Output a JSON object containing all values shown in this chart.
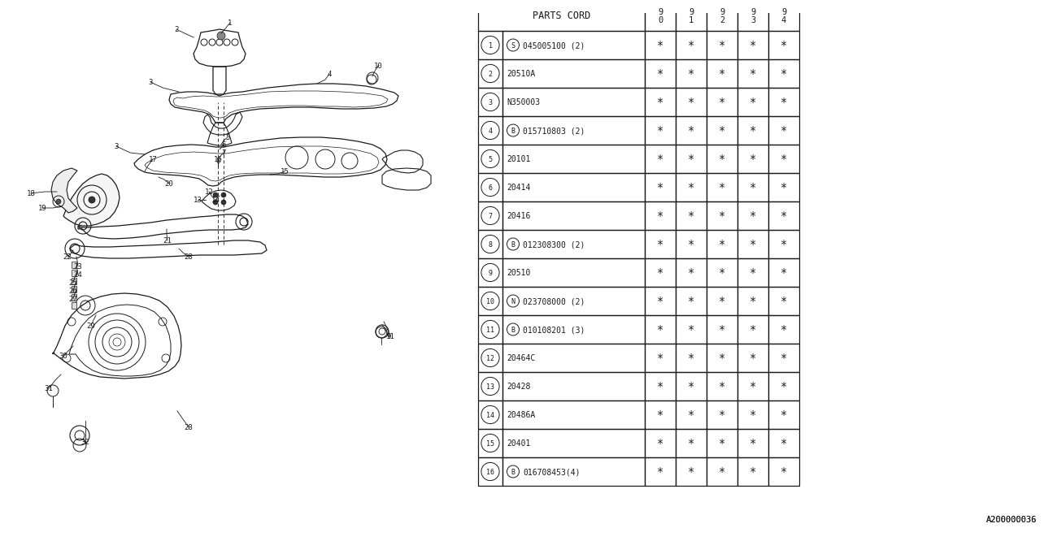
{
  "watermark": "A200000036",
  "bg_color": "#ffffff",
  "line_color": "#1a1a1a",
  "table": {
    "header_col": "PARTS CORD",
    "year_cols": [
      "9\n0",
      "9\n1",
      "9\n2",
      "9\n3",
      "9\n4"
    ],
    "rows": [
      {
        "num": "1",
        "prefix": "S",
        "code": "045005100 (2)"
      },
      {
        "num": "2",
        "prefix": "",
        "code": "20510A"
      },
      {
        "num": "3",
        "prefix": "",
        "code": "N350003"
      },
      {
        "num": "4",
        "prefix": "B",
        "code": "015710803 (2)"
      },
      {
        "num": "5",
        "prefix": "",
        "code": "20101"
      },
      {
        "num": "6",
        "prefix": "",
        "code": "20414"
      },
      {
        "num": "7",
        "prefix": "",
        "code": "20416"
      },
      {
        "num": "8",
        "prefix": "B",
        "code": "012308300 (2)"
      },
      {
        "num": "9",
        "prefix": "",
        "code": "20510"
      },
      {
        "num": "10",
        "prefix": "N",
        "code": "023708000 (2)"
      },
      {
        "num": "11",
        "prefix": "B",
        "code": "010108201 (3)"
      },
      {
        "num": "12",
        "prefix": "",
        "code": "20464C"
      },
      {
        "num": "13",
        "prefix": "",
        "code": "20428"
      },
      {
        "num": "14",
        "prefix": "",
        "code": "20486A"
      },
      {
        "num": "15",
        "prefix": "",
        "code": "20401"
      },
      {
        "num": "16",
        "prefix": "B",
        "code": "016708453(4)"
      }
    ]
  }
}
